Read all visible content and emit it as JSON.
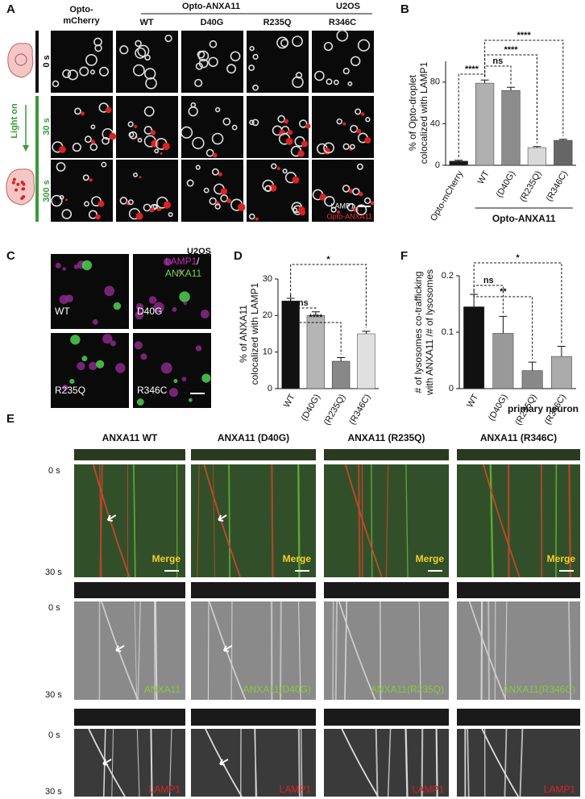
{
  "panels": {
    "A": {
      "label": "A",
      "control": [
        "Opto-",
        "mCherry"
      ],
      "group": "Opto-ANXA11",
      "cell_line": "U2OS",
      "columns": [
        "WT",
        "D40G",
        "R235Q",
        "R346C"
      ],
      "times": [
        "0 s",
        "30 s",
        "300 s"
      ],
      "light": "Light on",
      "legend": [
        "LAMP1",
        "Opto-ANXA11"
      ]
    },
    "B": {
      "label": "B"
    },
    "C": {
      "label": "C",
      "cell_line": "U2OS",
      "legend": [
        "LAMP1",
        "/",
        "ANXA11"
      ],
      "images": [
        "WT",
        "D40G",
        "R235Q",
        "R346C"
      ]
    },
    "D": {
      "label": "D"
    },
    "F": {
      "label": "F"
    },
    "E": {
      "label": "E",
      "context": "primary neuron",
      "columns": [
        "ANXA11 WT",
        "ANXA11 (D40G)",
        "ANXA11 (R235Q)",
        "ANXA11 (R346C)"
      ],
      "times": [
        "0 s",
        "30 s"
      ],
      "merge": "Merge",
      "anxa_labels": [
        "ANXA11",
        "ANXA11(D40G)",
        "ANXA11(R235Q)",
        "ANXA11(R346C)"
      ],
      "lamp": "LAMP1"
    }
  },
  "chart_data": [
    {
      "type": "bar",
      "y_label": [
        "% of Opto-droplet",
        "colocalized with LAMP1"
      ],
      "categories": [
        "Opto-mCherry",
        "WT",
        "(D40G)",
        "(R235Q)",
        "(R346C)"
      ],
      "values": [
        4,
        79,
        72,
        17,
        24
      ],
      "errors": [
        0.8,
        3,
        3,
        1,
        1
      ],
      "colors": [
        "#1a1a1a",
        "#b0b0b0",
        "#8c8c8c",
        "#d9d9d9",
        "#666666"
      ],
      "ylim": [
        0,
        100
      ],
      "yticks": [
        0,
        40,
        80
      ],
      "annotations": [
        "****",
        "ns",
        "****",
        "****"
      ],
      "group_label": "Opto-ANXA11"
    },
    {
      "type": "bar",
      "y_label": [
        "% of ANXA11",
        "colocalized with LAMP1"
      ],
      "categories": [
        "WT",
        "(D40G)",
        "(R235Q)",
        "(R346C)"
      ],
      "values": [
        24,
        20,
        7.5,
        15
      ],
      "errors": [
        0.7,
        1,
        1,
        0.7
      ],
      "colors": [
        "#111111",
        "#b5b5b5",
        "#888888",
        "#e0e0e0"
      ],
      "ylim": [
        0,
        30
      ],
      "yticks": [
        0,
        10,
        20,
        30
      ],
      "annotations": [
        "ns",
        "****",
        "*"
      ]
    },
    {
      "type": "bar",
      "y_label": [
        "# of lysosomes co-trafficking",
        "with ANXA11 /# of lysosomes"
      ],
      "categories": [
        "WT",
        "(D40G)",
        "(R235Q)",
        "(R346C)"
      ],
      "values": [
        0.145,
        0.098,
        0.032,
        0.057
      ],
      "errors": [
        0.022,
        0.03,
        0.015,
        0.018
      ],
      "colors": [
        "#111111",
        "#999999",
        "#888888",
        "#aaaaaa"
      ],
      "ylim": [
        0,
        0.2
      ],
      "yticks": [
        0,
        0.1,
        0.2
      ],
      "annotations": [
        "ns",
        "**",
        "*"
      ]
    }
  ]
}
